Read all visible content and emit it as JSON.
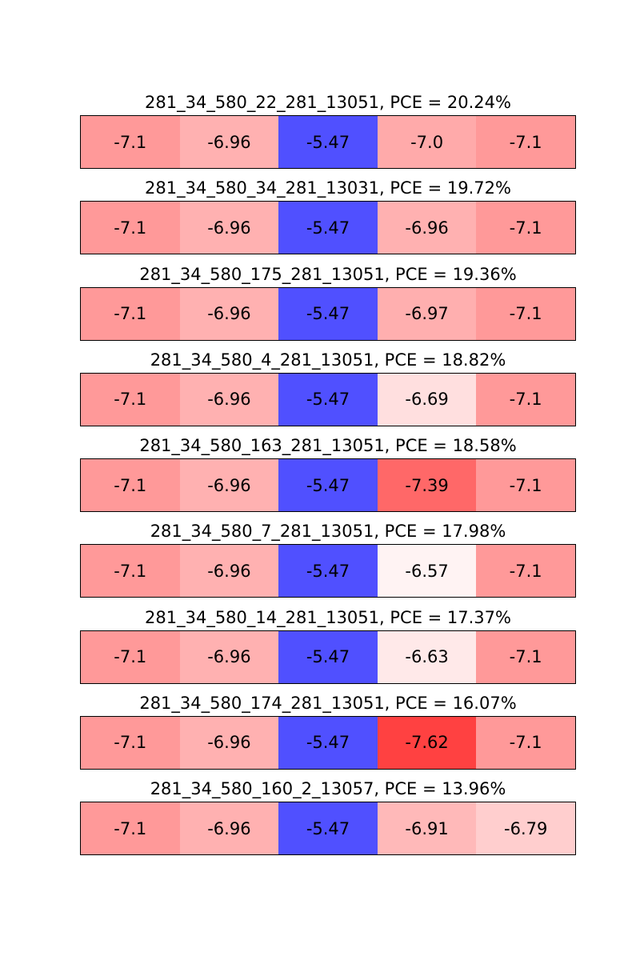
{
  "chart_data": {
    "type": "heatmap",
    "colormap": "bwr",
    "color_range": [
      -8.0,
      -5.0
    ],
    "colors": {
      "low": "#ff0000",
      "mid": "#ffffff",
      "high": "#0000ff"
    },
    "panels": [
      {
        "title": "281_34_580_22_281_13051, PCE = 20.24%",
        "values": [
          -7.1,
          -6.96,
          -5.47,
          -7.0,
          -7.1
        ],
        "labels": [
          "-7.1",
          "-6.96",
          "-5.47",
          "-7.0",
          "-7.1"
        ]
      },
      {
        "title": "281_34_580_34_281_13031, PCE = 19.72%",
        "values": [
          -7.1,
          -6.96,
          -5.47,
          -6.96,
          -7.1
        ],
        "labels": [
          "-7.1",
          "-6.96",
          "-5.47",
          "-6.96",
          "-7.1"
        ]
      },
      {
        "title": "281_34_580_175_281_13051, PCE = 19.36%",
        "values": [
          -7.1,
          -6.96,
          -5.47,
          -6.97,
          -7.1
        ],
        "labels": [
          "-7.1",
          "-6.96",
          "-5.47",
          "-6.97",
          "-7.1"
        ]
      },
      {
        "title": "281_34_580_4_281_13051, PCE = 18.82%",
        "values": [
          -7.1,
          -6.96,
          -5.47,
          -6.69,
          -7.1
        ],
        "labels": [
          "-7.1",
          "-6.96",
          "-5.47",
          "-6.69",
          "-7.1"
        ]
      },
      {
        "title": "281_34_580_163_281_13051, PCE = 18.58%",
        "values": [
          -7.1,
          -6.96,
          -5.47,
          -7.39,
          -7.1
        ],
        "labels": [
          "-7.1",
          "-6.96",
          "-5.47",
          "-7.39",
          "-7.1"
        ]
      },
      {
        "title": "281_34_580_7_281_13051, PCE = 17.98%",
        "values": [
          -7.1,
          -6.96,
          -5.47,
          -6.57,
          -7.1
        ],
        "labels": [
          "-7.1",
          "-6.96",
          "-5.47",
          "-6.57",
          "-7.1"
        ]
      },
      {
        "title": "281_34_580_14_281_13051, PCE = 17.37%",
        "values": [
          -7.1,
          -6.96,
          -5.47,
          -6.63,
          -7.1
        ],
        "labels": [
          "-7.1",
          "-6.96",
          "-5.47",
          "-6.63",
          "-7.1"
        ]
      },
      {
        "title": "281_34_580_174_281_13051, PCE = 16.07%",
        "values": [
          -7.1,
          -6.96,
          -5.47,
          -7.62,
          -7.1
        ],
        "labels": [
          "-7.1",
          "-6.96",
          "-5.47",
          "-7.62",
          "-7.1"
        ]
      },
      {
        "title": "281_34_580_160_2_13057, PCE = 13.96%",
        "values": [
          -7.1,
          -6.96,
          -5.47,
          -6.91,
          -6.79
        ],
        "labels": [
          "-7.1",
          "-6.96",
          "-5.47",
          "-6.91",
          "-6.79"
        ]
      }
    ]
  }
}
